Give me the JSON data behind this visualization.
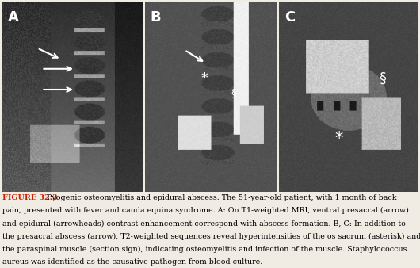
{
  "figure_width": 5.3,
  "figure_height": 3.38,
  "dpi": 100,
  "bg_color": "#f0ece4",
  "panel_labels": [
    "A",
    "B",
    "C"
  ],
  "panel_label_color": "white",
  "panel_label_fontsize": 13,
  "caption_fontsize": 6.8,
  "figure_label": "FIGURE 32.3",
  "figure_label_color": "#cc2200",
  "caption_line1": "  Pyogenic osteomyelitis and epidural abscess. The 51-year-old patient, with 1 month of back",
  "caption_line2": "pain, presented with fever and cauda equina syndrome. A: On T1-weighted MRI, ventral presacral (arrow)",
  "caption_line3": "and epidural (arrowheads) contrast enhancement correspond with abscess formation. B, C: In addition to",
  "caption_line4": "the presacral abscess (arrow), T2-weighted sequences reveal hyperintensities of the os sacrum (asterisk) and",
  "caption_line5": "the paraspinal muscle (section sign), indicating osteomyelitis and infection of the muscle. Staphylococcus",
  "caption_line6": "aureus was identified as the causative pathogen from blood culture."
}
